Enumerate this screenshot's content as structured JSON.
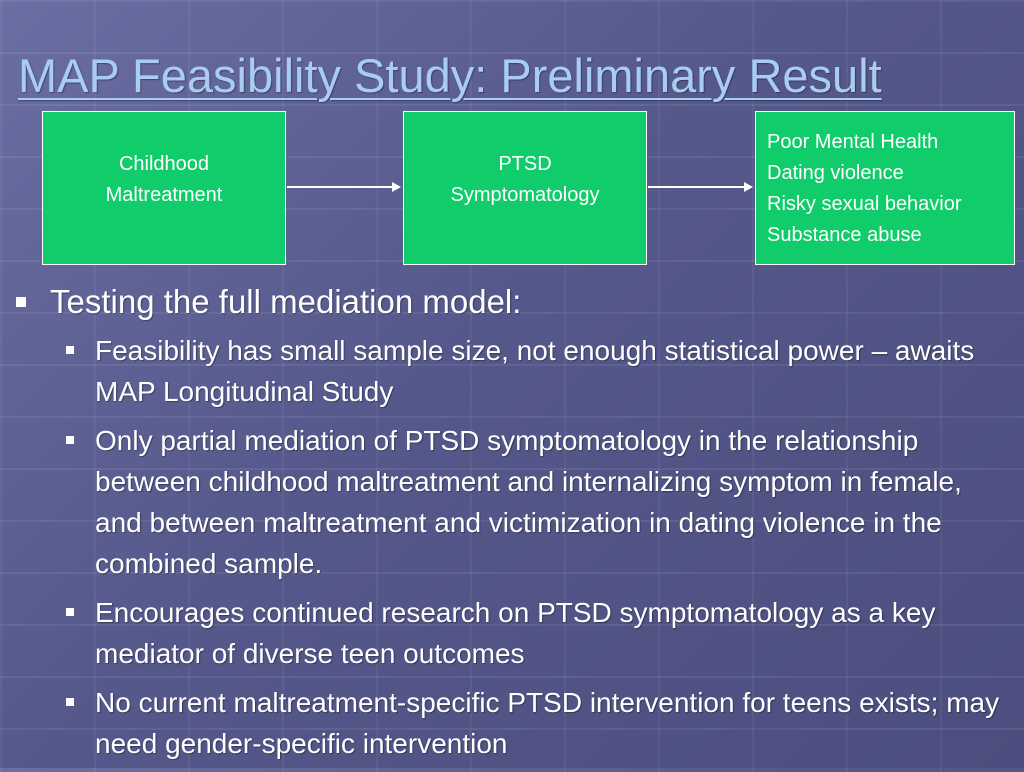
{
  "slide": {
    "title": "MAP Feasibility Study: Preliminary Result"
  },
  "diagram": {
    "box1": {
      "lines": [
        "Childhood",
        "Maltreatment"
      ]
    },
    "box2": {
      "lines": [
        "PTSD",
        "Symptomatology"
      ]
    },
    "box3": {
      "lines": [
        "Poor Mental Health",
        "Dating violence",
        "Risky sexual behavior",
        "Substance abuse"
      ]
    }
  },
  "bullets": {
    "main": "Testing the full mediation model:",
    "sub": [
      "Feasibility has small sample size, not enough statistical power – awaits MAP Longitudinal Study",
      "Only partial mediation of PTSD symptomatology in the relationship between childhood maltreatment and internalizing symptom in female, and between maltreatment and victimization in dating violence in the combined sample.",
      "Encourages continued research on PTSD symptomatology as a key mediator of diverse teen outcomes",
      "No current maltreatment-specific PTSD intervention for teens exists; may need gender-specific intervention"
    ]
  },
  "colors": {
    "box_fill": "#10cc6a",
    "title_color": "#a8ccf2",
    "background": "#5a5d8f"
  }
}
